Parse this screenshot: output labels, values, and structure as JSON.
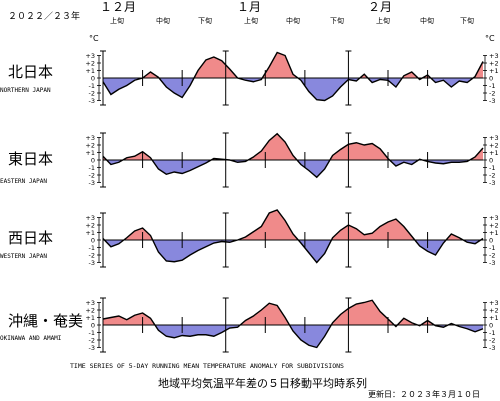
{
  "header": {
    "season": "２０２２／２３年",
    "months": [
      "１２月",
      "１月",
      "２月"
    ],
    "decades": [
      "上旬",
      "中旬",
      "下旬"
    ]
  },
  "footer": {
    "english_title": "TIME SERIES OF 5-DAY RUNNING MEAN TEMPERATURE ANOMALY FOR SUBDIVISIONS",
    "japanese_title": "地域平均気温平年差の５日移動平均時系列",
    "updated": "更新日：２０２３年３月１０日"
  },
  "unit": "°C",
  "colors": {
    "positive": "#f08a8a",
    "negative": "#8888dd",
    "line": "#000000"
  },
  "chart_data": [
    {
      "type": "area",
      "region_ja": "北日本",
      "region_en": "NORTHERN JAPAN",
      "x_start": "2022-12-01",
      "x_end": "2023-03-07",
      "ylim": [
        -3,
        3
      ],
      "yticks": [
        "+3",
        "+2",
        "+1",
        "0",
        "-1",
        "-2",
        "-3"
      ],
      "x": [
        0,
        2,
        4,
        6,
        8,
        10,
        12,
        14,
        16,
        18,
        20,
        22,
        24,
        26,
        28,
        30,
        32,
        34,
        36,
        38,
        40,
        42,
        44,
        46,
        48,
        50,
        52,
        54,
        56,
        58,
        60,
        62,
        64,
        66,
        68,
        70,
        72,
        74,
        76,
        78,
        80,
        82,
        84,
        86,
        88,
        90,
        92,
        94,
        96
      ],
      "values": [
        -0.5,
        -2.2,
        -1.5,
        -1.0,
        -0.3,
        0.0,
        0.8,
        0.1,
        -1.2,
        -2.0,
        -2.6,
        -1.0,
        1.0,
        2.4,
        2.8,
        2.3,
        1.2,
        0.0,
        -0.3,
        -0.5,
        -0.2,
        1.5,
        3.4,
        3.0,
        0.5,
        -0.3,
        -1.8,
        -2.9,
        -3.0,
        -2.4,
        -1.2,
        -0.2,
        -0.4,
        0.5,
        -0.6,
        -0.2,
        -0.3,
        -1.2,
        0.3,
        0.8,
        -0.2,
        0.4,
        -0.6,
        -0.3,
        -1.2,
        -0.4,
        -0.6,
        0.2,
        2.2
      ]
    },
    {
      "type": "area",
      "region_ja": "東日本",
      "region_en": "EASTERN JAPAN",
      "x_start": "2022-12-01",
      "x_end": "2023-03-07",
      "ylim": [
        -3,
        3
      ],
      "yticks": [
        "+3",
        "+2",
        "+1",
        "0",
        "-1",
        "-2",
        "-3"
      ],
      "x": [
        0,
        2,
        4,
        6,
        8,
        10,
        12,
        14,
        16,
        18,
        20,
        22,
        24,
        26,
        28,
        30,
        32,
        34,
        36,
        38,
        40,
        42,
        44,
        46,
        48,
        50,
        52,
        54,
        56,
        58,
        60,
        62,
        64,
        66,
        68,
        70,
        72,
        74,
        76,
        78,
        80,
        82,
        84,
        86,
        88,
        90,
        92,
        94,
        96
      ],
      "values": [
        0.5,
        -0.6,
        -0.3,
        0.3,
        0.5,
        1.1,
        0.3,
        -1.2,
        -1.9,
        -1.6,
        -1.8,
        -1.4,
        -0.9,
        -0.4,
        0.2,
        0.1,
        0.0,
        -0.3,
        -0.2,
        0.4,
        1.2,
        2.6,
        3.5,
        2.4,
        0.6,
        -0.6,
        -1.4,
        -2.3,
        -1.2,
        0.6,
        1.4,
        2.1,
        2.3,
        2.0,
        2.2,
        1.5,
        0.2,
        -0.8,
        -0.3,
        -0.6,
        0.1,
        -0.2,
        -0.4,
        -0.5,
        -0.3,
        -0.3,
        -0.2,
        0.4,
        1.6
      ]
    },
    {
      "type": "area",
      "region_ja": "西日本",
      "region_en": "WESTERN JAPAN",
      "x_start": "2022-12-01",
      "x_end": "2023-03-07",
      "ylim": [
        -3,
        3
      ],
      "yticks": [
        "+3",
        "+2",
        "+1",
        "0",
        "-1",
        "-2",
        "-3"
      ],
      "x": [
        0,
        2,
        4,
        6,
        8,
        10,
        12,
        14,
        16,
        18,
        20,
        22,
        24,
        26,
        28,
        30,
        32,
        34,
        36,
        38,
        40,
        42,
        44,
        46,
        48,
        50,
        52,
        54,
        56,
        58,
        60,
        62,
        64,
        66,
        68,
        70,
        72,
        74,
        76,
        78,
        80,
        82,
        84,
        86,
        88,
        90,
        92,
        94,
        96
      ],
      "values": [
        0.2,
        -0.9,
        -0.5,
        0.3,
        1.2,
        1.6,
        0.6,
        -1.6,
        -2.8,
        -2.9,
        -2.7,
        -2.0,
        -1.4,
        -0.9,
        -0.4,
        -0.2,
        -0.3,
        0.0,
        0.4,
        1.1,
        1.8,
        3.6,
        4.0,
        2.6,
        0.8,
        -0.4,
        -1.7,
        -3.0,
        -1.8,
        0.3,
        1.3,
        2.0,
        1.5,
        0.7,
        0.9,
        1.8,
        2.4,
        2.8,
        1.8,
        0.5,
        -0.8,
        -1.5,
        -2.0,
        -0.4,
        0.8,
        0.3,
        -0.3,
        -0.5,
        0.2
      ]
    },
    {
      "type": "area",
      "region_ja": "沖縄・奄美",
      "region_en": "OKINAWA AND AMAMI",
      "x_start": "2022-12-01",
      "x_end": "2023-03-07",
      "ylim": [
        -3,
        3
      ],
      "yticks": [
        "+3",
        "+2",
        "+1",
        "0",
        "-1",
        "-2",
        "-3"
      ],
      "x": [
        0,
        2,
        4,
        6,
        8,
        10,
        12,
        14,
        16,
        18,
        20,
        22,
        24,
        26,
        28,
        30,
        32,
        34,
        36,
        38,
        40,
        42,
        44,
        46,
        48,
        50,
        52,
        54,
        56,
        58,
        60,
        62,
        64,
        66,
        68,
        70,
        72,
        74,
        76,
        78,
        80,
        82,
        84,
        86,
        88,
        90,
        92,
        94,
        96
      ],
      "values": [
        0.8,
        1.0,
        1.2,
        0.7,
        1.3,
        1.6,
        0.9,
        -0.7,
        -1.5,
        -1.7,
        -1.4,
        -1.5,
        -1.3,
        -1.3,
        -1.5,
        -1.0,
        -0.4,
        -0.3,
        0.6,
        1.2,
        2.0,
        2.9,
        2.6,
        1.0,
        -0.8,
        -2.0,
        -2.7,
        -3.0,
        -1.5,
        0.3,
        1.4,
        2.2,
        2.8,
        3.0,
        3.3,
        1.8,
        0.8,
        -0.2,
        0.9,
        0.3,
        -0.1,
        0.6,
        -0.1,
        -0.3,
        0.2,
        -0.2,
        -0.5,
        -0.9,
        -0.5
      ]
    }
  ]
}
